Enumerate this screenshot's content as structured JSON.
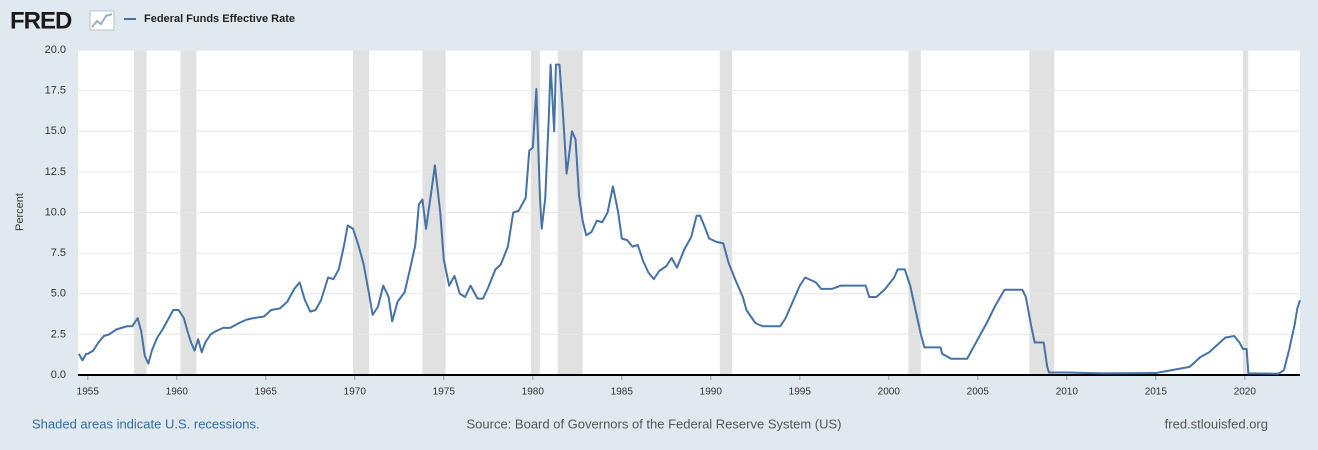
{
  "logo": "FRED",
  "chart_data": {
    "type": "line",
    "series": [
      {
        "name": "Federal Funds Effective Rate",
        "color": "#4572a7",
        "x": [
          1954.5,
          1954.7,
          1954.9,
          1955.0,
          1955.3,
          1955.6,
          1955.9,
          1956.2,
          1956.6,
          1956.9,
          1957.2,
          1957.5,
          1957.8,
          1958.0,
          1958.2,
          1958.4,
          1958.6,
          1958.9,
          1959.2,
          1959.5,
          1959.8,
          1960.1,
          1960.4,
          1960.6,
          1960.8,
          1961.0,
          1961.2,
          1961.4,
          1961.6,
          1961.9,
          1962.2,
          1962.6,
          1963.0,
          1963.5,
          1963.9,
          1964.3,
          1964.9,
          1965.3,
          1965.8,
          1966.2,
          1966.6,
          1966.9,
          1967.2,
          1967.5,
          1967.8,
          1968.1,
          1968.5,
          1968.8,
          1969.1,
          1969.4,
          1969.6,
          1969.9,
          1970.2,
          1970.5,
          1970.8,
          1971.0,
          1971.3,
          1971.6,
          1971.9,
          1972.1,
          1972.4,
          1972.8,
          1973.1,
          1973.4,
          1973.6,
          1973.8,
          1974.0,
          1974.3,
          1974.5,
          1974.8,
          1975.0,
          1975.3,
          1975.6,
          1975.9,
          1976.2,
          1976.5,
          1976.9,
          1977.2,
          1977.5,
          1977.9,
          1978.2,
          1978.6,
          1978.9,
          1979.2,
          1979.6,
          1979.8,
          1980.0,
          1980.2,
          1980.4,
          1980.5,
          1980.7,
          1980.9,
          1981.0,
          1981.2,
          1981.3,
          1981.5,
          1981.7,
          1981.9,
          1982.0,
          1982.2,
          1982.4,
          1982.6,
          1982.8,
          1983.0,
          1983.3,
          1983.6,
          1983.9,
          1984.2,
          1984.5,
          1984.8,
          1985.0,
          1985.3,
          1985.6,
          1985.9,
          1986.2,
          1986.5,
          1986.8,
          1987.1,
          1987.5,
          1987.8,
          1988.1,
          1988.5,
          1988.9,
          1989.2,
          1989.4,
          1989.7,
          1989.9,
          1990.3,
          1990.7,
          1991.0,
          1991.4,
          1991.8,
          1992.0,
          1992.5,
          1992.9,
          1993.5,
          1993.9,
          1994.2,
          1994.6,
          1995.0,
          1995.3,
          1995.9,
          1996.2,
          1996.8,
          1997.3,
          1998.0,
          1998.7,
          1998.9,
          1999.3,
          1999.8,
          2000.3,
          2000.5,
          2000.9,
          2001.2,
          2001.5,
          2001.8,
          2002.0,
          2002.9,
          2003.0,
          2003.5,
          2004.4,
          2004.9,
          2005.5,
          2006.0,
          2006.5,
          2007.5,
          2007.7,
          2008.0,
          2008.2,
          2008.7,
          2008.9,
          2009.0,
          2010.0,
          2012.0,
          2015.0,
          2015.9,
          2016.9,
          2017.5,
          2018.0,
          2018.5,
          2018.9,
          2019.4,
          2019.7,
          2019.9,
          2020.1,
          2020.2,
          2021.9,
          2022.2,
          2022.5,
          2022.8,
          2022.95,
          2023.1
        ],
        "values": [
          1.3,
          0.9,
          1.3,
          1.3,
          1.5,
          2.0,
          2.4,
          2.5,
          2.8,
          2.9,
          3.0,
          3.0,
          3.5,
          2.7,
          1.2,
          0.7,
          1.5,
          2.3,
          2.8,
          3.4,
          4.0,
          4.0,
          3.5,
          2.7,
          2.0,
          1.5,
          2.2,
          1.4,
          2.0,
          2.5,
          2.7,
          2.9,
          2.9,
          3.2,
          3.4,
          3.5,
          3.6,
          4.0,
          4.1,
          4.5,
          5.3,
          5.7,
          4.6,
          3.9,
          4.0,
          4.6,
          6.0,
          5.9,
          6.5,
          8.0,
          9.2,
          9.0,
          8.0,
          6.8,
          5.0,
          3.7,
          4.2,
          5.5,
          4.8,
          3.3,
          4.5,
          5.1,
          6.5,
          8.0,
          10.5,
          10.8,
          9.0,
          11.3,
          12.9,
          10.0,
          7.1,
          5.5,
          6.1,
          5.0,
          4.8,
          5.5,
          4.7,
          4.7,
          5.4,
          6.5,
          6.8,
          7.9,
          10.0,
          10.1,
          10.9,
          13.8,
          14.0,
          17.6,
          11.0,
          9.0,
          10.9,
          15.9,
          19.1,
          15.0,
          19.1,
          19.1,
          16.0,
          12.4,
          13.2,
          15.0,
          14.5,
          11.0,
          9.5,
          8.6,
          8.8,
          9.5,
          9.4,
          10.0,
          11.6,
          10.0,
          8.4,
          8.3,
          7.9,
          8.0,
          7.0,
          6.3,
          5.9,
          6.4,
          6.7,
          7.2,
          6.6,
          7.7,
          8.5,
          9.8,
          9.8,
          9.0,
          8.4,
          8.2,
          8.1,
          6.9,
          5.8,
          4.8,
          4.0,
          3.2,
          3.0,
          3.0,
          3.0,
          3.5,
          4.5,
          5.5,
          6.0,
          5.7,
          5.3,
          5.3,
          5.5,
          5.5,
          5.5,
          4.8,
          4.8,
          5.3,
          6.0,
          6.5,
          6.5,
          5.5,
          4.0,
          2.5,
          1.7,
          1.7,
          1.3,
          1.0,
          1.0,
          2.0,
          3.2,
          4.3,
          5.25,
          5.25,
          4.8,
          3.0,
          2.0,
          2.0,
          0.5,
          0.15,
          0.15,
          0.1,
          0.12,
          0.3,
          0.5,
          1.1,
          1.4,
          1.9,
          2.3,
          2.4,
          2.0,
          1.6,
          1.6,
          0.1,
          0.08,
          0.3,
          1.6,
          3.1,
          4.1,
          4.6
        ]
      }
    ],
    "recessions": [
      [
        1957.6,
        1958.3
      ],
      [
        1960.2,
        1961.1
      ],
      [
        1969.9,
        1970.8
      ],
      [
        1973.8,
        1975.1
      ],
      [
        1979.9,
        1980.4
      ],
      [
        1981.4,
        1982.8
      ],
      [
        1990.5,
        1991.2
      ],
      [
        2001.1,
        2001.8
      ],
      [
        2007.9,
        2009.3
      ],
      [
        2019.9,
        2020.2
      ]
    ],
    "recession_color": "#e1e1e1",
    "ylabel": "Percent",
    "xlim": [
      1954.45,
      2023.1
    ],
    "ylim": [
      0,
      20
    ],
    "xticks": [
      1955,
      1960,
      1965,
      1970,
      1975,
      1980,
      1985,
      1990,
      1995,
      2000,
      2005,
      2010,
      2015,
      2020
    ],
    "yticks": [
      {
        "value": 0,
        "label": "0.0"
      },
      2.5,
      {
        "value": 5,
        "label": "5.0"
      },
      7.5,
      {
        "value": 10,
        "label": "10.0"
      },
      12.5,
      {
        "value": 15,
        "label": "15.0"
      },
      17.5,
      {
        "value": 20,
        "label": "20.0"
      }
    ],
    "grid": true,
    "note": "Shaded areas indicate U.S. recessions.",
    "source": "Source: Board of Governors of the Federal Reserve System (US)",
    "site": "fred.stlouisfed.org"
  }
}
